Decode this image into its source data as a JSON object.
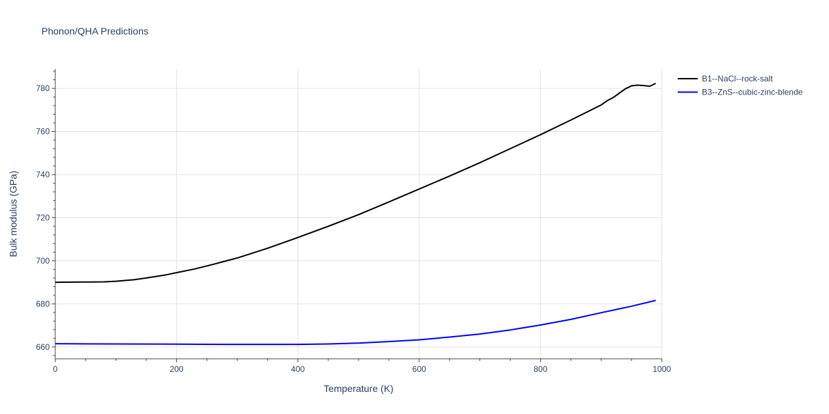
{
  "chart_data": {
    "type": "line",
    "title": "Phonon/QHA Predictions",
    "xlabel": "Temperature (K)",
    "ylabel": "Bulk modulus (GPa)",
    "xlim": [
      0,
      1000
    ],
    "ylim": [
      654.5,
      789
    ],
    "x_ticks": [
      0,
      200,
      400,
      600,
      800,
      1000
    ],
    "y_ticks": [
      660,
      680,
      700,
      720,
      740,
      760,
      780
    ],
    "x_tick_labels": [
      "0",
      "200",
      "400",
      "600",
      "800",
      "1000"
    ],
    "y_tick_labels": [
      "660",
      "680",
      "700",
      "720",
      "740",
      "760",
      "780"
    ],
    "grid": true,
    "legend_position": "top-right outside",
    "series": [
      {
        "name": "B1--NaCl--rock-salt",
        "color": "#000000",
        "x": [
          0,
          40,
          80,
          100,
          130,
          150,
          180,
          200,
          230,
          260,
          280,
          300,
          350,
          400,
          450,
          500,
          550,
          600,
          650,
          700,
          750,
          800,
          850,
          900,
          910,
          920,
          930,
          940,
          950,
          960,
          970,
          980,
          990
        ],
        "y": [
          690.0,
          690.1,
          690.2,
          690.5,
          691.2,
          692.0,
          693.3,
          694.5,
          696.2,
          698.3,
          699.8,
          701.3,
          705.8,
          710.8,
          716.0,
          721.4,
          727.3,
          733.3,
          739.3,
          745.5,
          752.0,
          758.5,
          765.3,
          772.3,
          774.3,
          775.8,
          777.8,
          779.8,
          781.2,
          781.5,
          781.3,
          781.0,
          782.3
        ]
      },
      {
        "name": "B3--ZnS--cubic-zinc-blende",
        "color": "#0000ff",
        "x": [
          0,
          100,
          200,
          270,
          300,
          350,
          400,
          450,
          500,
          550,
          600,
          650,
          700,
          750,
          800,
          850,
          900,
          950,
          990
        ],
        "y": [
          661.5,
          661.4,
          661.3,
          661.2,
          661.2,
          661.2,
          661.2,
          661.4,
          661.8,
          662.5,
          663.3,
          664.6,
          666.0,
          667.9,
          670.2,
          672.8,
          675.9,
          678.9,
          681.6
        ]
      }
    ]
  }
}
